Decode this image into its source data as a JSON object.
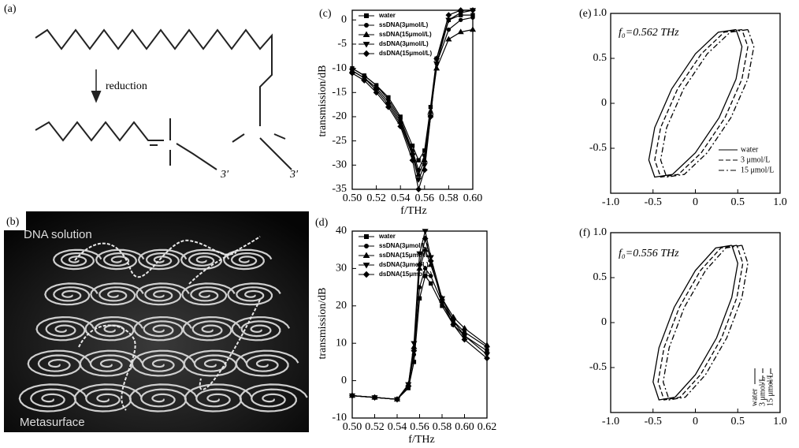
{
  "figure": {
    "panel_a": {
      "label": "(a)",
      "arrow_label": "reduction",
      "end_labels": [
        "3′",
        "3′"
      ]
    },
    "panel_b": {
      "label": "(b)",
      "top_text": "DNA solution",
      "bottom_text": "Metasurface"
    }
  },
  "chart_data": [
    {
      "type": "line",
      "panel_label": "(c)",
      "ylabel": "transmission/dB",
      "xlabel": "f/THz",
      "x": [
        0.5,
        0.51,
        0.52,
        0.53,
        0.54,
        0.55,
        0.555,
        0.56,
        0.565,
        0.57,
        0.58,
        0.59,
        0.6
      ],
      "xlim": [
        0.5,
        0.6
      ],
      "xticks": [
        {
          "value": 0.5,
          "label": "0.50"
        },
        0.52,
        0.54,
        0.56,
        0.58,
        {
          "value": 0.6,
          "label": "0.60"
        }
      ],
      "ylim": [
        -35,
        2
      ],
      "yticks": [
        0,
        -5,
        -10,
        -15,
        -20,
        -25,
        -30,
        -35
      ],
      "grid": false,
      "legend": "upper left",
      "series": [
        {
          "name": "water",
          "color": "#000000",
          "marker": "square",
          "values": [
            -10,
            -11.5,
            -13.5,
            -16,
            -20,
            -26,
            -29,
            -27,
            -18,
            -8,
            0,
            1,
            1
          ]
        },
        {
          "name": "ssDNA(3μmol/L)",
          "color": "#000000",
          "marker": "circle",
          "values": [
            -10,
            -11.5,
            -13.5,
            -16.5,
            -20.5,
            -27,
            -31,
            -28,
            -19,
            -9,
            -2,
            0,
            0.5
          ]
        },
        {
          "name": "ssDNA(15μmol/L)",
          "color": "#000000",
          "marker": "triangle-up",
          "values": [
            -10.5,
            -12,
            -14,
            -17,
            -21,
            -27.5,
            -32,
            -29,
            -19,
            -10,
            -4,
            -2.5,
            -2
          ]
        },
        {
          "name": "dsDNA(3μmol/L)",
          "color": "#000000",
          "marker": "triangle-down",
          "values": [
            -10.5,
            -12,
            -14.5,
            -17.5,
            -21.5,
            -28,
            -33,
            -30,
            -20,
            -9,
            0,
            1.5,
            2
          ]
        },
        {
          "name": "dsDNA(15μmol/L)",
          "color": "#000000",
          "marker": "diamond",
          "values": [
            -11,
            -12.5,
            -15,
            -18,
            -22,
            -29,
            -35,
            -31,
            -20,
            -8,
            1,
            2,
            2
          ]
        }
      ]
    },
    {
      "type": "line",
      "panel_label": "(d)",
      "ylabel": "transmission/dB",
      "xlabel": "f/THz",
      "x": [
        0.5,
        0.52,
        0.54,
        0.55,
        0.555,
        0.56,
        0.565,
        0.57,
        0.58,
        0.59,
        0.6,
        0.62
      ],
      "xlim": [
        0.5,
        0.62
      ],
      "xticks": [
        {
          "value": 0.5,
          "label": "0.50"
        },
        0.52,
        0.54,
        0.56,
        0.58,
        {
          "value": 0.6,
          "label": "0.60"
        },
        0.62
      ],
      "ylim": [
        -10,
        40
      ],
      "yticks": [
        -10,
        0,
        10,
        20,
        30,
        40
      ],
      "grid": false,
      "legend": "upper left",
      "series": [
        {
          "name": "water",
          "color": "#000000",
          "marker": "square",
          "values": [
            -4,
            -4.5,
            -5,
            -2,
            5,
            22,
            28,
            26,
            20,
            15,
            12,
            8
          ]
        },
        {
          "name": "ssDNA(3μmol/L)",
          "color": "#000000",
          "marker": "circle",
          "values": [
            -4,
            -4.5,
            -5,
            -1.5,
            7,
            25,
            30,
            28,
            21,
            16,
            13,
            9
          ]
        },
        {
          "name": "ssDNA(15μmol/L)",
          "color": "#000000",
          "marker": "triangle-up",
          "values": [
            -4,
            -4.5,
            -5,
            -1,
            9,
            30,
            35,
            31,
            22,
            17,
            14,
            9.5
          ]
        },
        {
          "name": "dsDNA(3μmol/L)",
          "color": "#000000",
          "marker": "triangle-down",
          "values": [
            -4,
            -4.5,
            -5,
            -1,
            10,
            34,
            40,
            33,
            22,
            16,
            12,
            7
          ]
        },
        {
          "name": "dsDNA(15μmol/L)",
          "color": "#000000",
          "marker": "diamond",
          "values": [
            -4,
            -4.5,
            -5,
            -1.5,
            8,
            31,
            38,
            32,
            21,
            15,
            11,
            6
          ]
        }
      ]
    },
    {
      "type": "curve",
      "panel_label": "(e)",
      "annotation": "f₀=0.562 THz",
      "xlim": [
        -1,
        1
      ],
      "xticks": [
        {
          "value": -1,
          "label": "-1.0"
        },
        -0.5,
        0,
        0.5,
        {
          "value": 1,
          "label": "1.0"
        }
      ],
      "ylim": [
        -1,
        1
      ],
      "yticks": [
        {
          "value": 1,
          "label": "1.0"
        },
        0.5,
        0,
        -0.5
      ],
      "grid": false,
      "legend": "lower right",
      "series": [
        {
          "name": "water",
          "color": "#000000",
          "line_style": "solid",
          "x": [
            0.48,
            0.27,
            0.0,
            -0.28,
            -0.48,
            -0.55,
            -0.48,
            -0.27,
            0.0,
            0.28,
            0.48,
            0.55,
            0.48
          ],
          "values": [
            0.82,
            0.79,
            0.55,
            0.16,
            -0.27,
            -0.63,
            -0.82,
            -0.79,
            -0.55,
            -0.16,
            0.27,
            0.63,
            0.82
          ]
        },
        {
          "name": "3 μmol/L",
          "color": "#000000",
          "line_style": "dashed",
          "x": [
            0.55,
            0.34,
            0.07,
            -0.21,
            -0.41,
            -0.48,
            -0.41,
            -0.2,
            0.07,
            0.35,
            0.55,
            0.62,
            0.55
          ],
          "values": [
            0.82,
            0.79,
            0.55,
            0.16,
            -0.27,
            -0.63,
            -0.82,
            -0.79,
            -0.55,
            -0.16,
            0.27,
            0.63,
            0.82
          ]
        },
        {
          "name": "15 μmol/L",
          "color": "#000000",
          "line_style": "dashdot",
          "x": [
            0.62,
            0.41,
            0.14,
            -0.14,
            -0.34,
            -0.41,
            -0.34,
            -0.13,
            0.14,
            0.42,
            0.62,
            0.69,
            0.62
          ],
          "values": [
            0.82,
            0.79,
            0.55,
            0.16,
            -0.27,
            -0.63,
            -0.82,
            -0.79,
            -0.55,
            -0.16,
            0.27,
            0.63,
            0.82
          ]
        }
      ]
    },
    {
      "type": "curve",
      "panel_label": "(f)",
      "annotation": "f₀=0.556 THz",
      "xlim": [
        -1,
        1
      ],
      "xticks": [
        {
          "value": -1,
          "label": "-1.0"
        },
        -0.5,
        0,
        0.5,
        {
          "value": 1,
          "label": "1.0"
        }
      ],
      "ylim": [
        -1,
        1
      ],
      "yticks": [
        {
          "value": 1,
          "label": "1.0"
        },
        0.5,
        0,
        -0.5
      ],
      "grid": false,
      "legend": "lower right",
      "series": [
        {
          "name": "water",
          "color": "#000000",
          "line_style": "solid",
          "x": [
            0.43,
            0.24,
            0.0,
            -0.25,
            -0.43,
            -0.5,
            -0.43,
            -0.24,
            0.0,
            0.25,
            0.43,
            0.5,
            0.43
          ],
          "values": [
            0.86,
            0.83,
            0.58,
            0.17,
            -0.28,
            -0.66,
            -0.86,
            -0.83,
            -0.58,
            -0.17,
            0.28,
            0.66,
            0.86
          ]
        },
        {
          "name": "3 μmol/L",
          "color": "#000000",
          "line_style": "dashed",
          "x": [
            0.49,
            0.3,
            0.06,
            -0.19,
            -0.37,
            -0.44,
            -0.37,
            -0.18,
            0.06,
            0.31,
            0.49,
            0.56,
            0.49
          ],
          "values": [
            0.86,
            0.83,
            0.58,
            0.17,
            -0.28,
            -0.66,
            -0.86,
            -0.83,
            -0.58,
            -0.17,
            0.28,
            0.66,
            0.86
          ]
        },
        {
          "name": "15 μmol/L",
          "color": "#000000",
          "line_style": "dashdot",
          "x": [
            0.55,
            0.36,
            0.12,
            -0.13,
            -0.31,
            -0.38,
            -0.31,
            -0.12,
            0.12,
            0.37,
            0.55,
            0.62,
            0.55
          ],
          "values": [
            0.86,
            0.83,
            0.58,
            0.17,
            -0.28,
            -0.66,
            -0.86,
            -0.83,
            -0.58,
            -0.17,
            0.28,
            0.66,
            0.86
          ]
        }
      ]
    }
  ]
}
